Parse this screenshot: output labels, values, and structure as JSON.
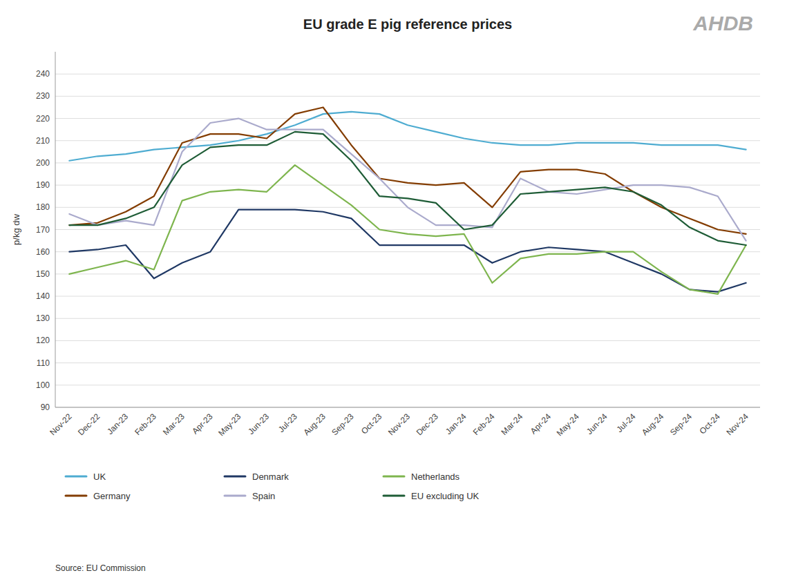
{
  "chart_data": {
    "type": "line",
    "title": "EU grade E pig reference prices",
    "ylabel": "p/kg dw",
    "source": "Source: EU Commission",
    "annotations": [
      {
        "text": "AHDB",
        "color": "#AAAAAA"
      }
    ],
    "categories": [
      "Nov-22",
      "Dec-22",
      "Jan-23",
      "Feb-23",
      "Mar-23",
      "Apr-23",
      "May-23",
      "Jun-23",
      "Jul-23",
      "Aug-23",
      "Sep-23",
      "Oct-23",
      "Nov-23",
      "Dec-23",
      "Jan-24",
      "Feb-24",
      "Mar-24",
      "Apr-24",
      "May-24",
      "Jun-24",
      "Jul-24",
      "Aug-24",
      "Sep-24",
      "Oct-24",
      "Nov-24"
    ],
    "series": [
      {
        "name": "UK",
        "color": "#4EACD1",
        "values": [
          201,
          203,
          204,
          206,
          207,
          208,
          210,
          213,
          217,
          222,
          223,
          222,
          217,
          214,
          211,
          209,
          208,
          208,
          209,
          209,
          209,
          208,
          208,
          208,
          206
        ]
      },
      {
        "name": "Denmark",
        "color": "#1F3864",
        "values": [
          160,
          161,
          163,
          148,
          155,
          160,
          179,
          179,
          179,
          178,
          175,
          163,
          163,
          163,
          163,
          155,
          160,
          162,
          161,
          160,
          155,
          150,
          143,
          142,
          146
        ]
      },
      {
        "name": "Netherlands",
        "color": "#7EB54E",
        "values": [
          150,
          153,
          156,
          152,
          183,
          187,
          188,
          187,
          199,
          190,
          181,
          170,
          168,
          167,
          168,
          146,
          157,
          159,
          159,
          160,
          160,
          151,
          143,
          141,
          163
        ]
      },
      {
        "name": "Germany",
        "color": "#833C00",
        "values": [
          172,
          173,
          178,
          185,
          209,
          213,
          213,
          211,
          222,
          225,
          208,
          193,
          191,
          190,
          191,
          180,
          196,
          197,
          197,
          195,
          187,
          180,
          175,
          170,
          168
        ]
      },
      {
        "name": "Spain",
        "color": "#AAAACC",
        "values": [
          177,
          172,
          174,
          172,
          205,
          218,
          220,
          215,
          215,
          215,
          204,
          193,
          180,
          172,
          172,
          171,
          193,
          187,
          186,
          188,
          190,
          190,
          189,
          185,
          165
        ]
      },
      {
        "name": "EU excluding UK",
        "color": "#1E5C36",
        "values": [
          172,
          172,
          175,
          180,
          199,
          207,
          208,
          208,
          214,
          213,
          201,
          185,
          184,
          182,
          170,
          172,
          186,
          187,
          188,
          189,
          187,
          181,
          171,
          165,
          163
        ]
      }
    ],
    "ylim": [
      90,
      250
    ],
    "yticks": [
      90,
      100,
      110,
      120,
      130,
      140,
      150,
      160,
      170,
      180,
      190,
      200,
      210,
      220,
      230,
      240
    ],
    "grid": true,
    "legend": "bottom"
  }
}
